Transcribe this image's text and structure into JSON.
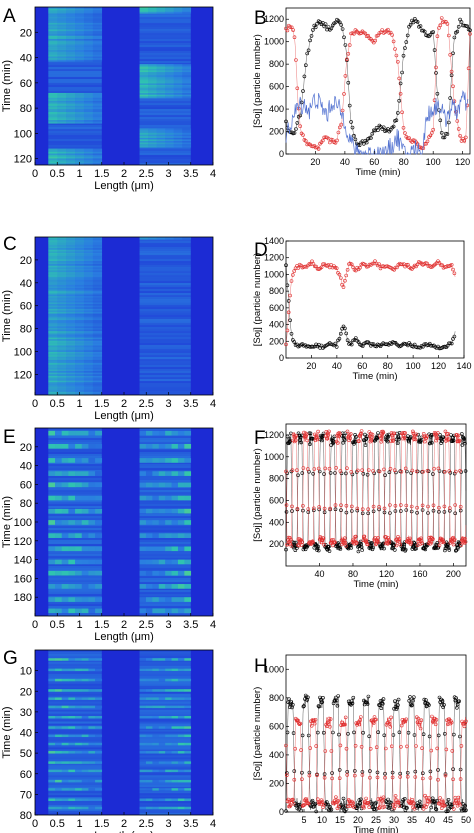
{
  "figure": {
    "panels": [
      "A",
      "B",
      "C",
      "D",
      "E",
      "F",
      "G",
      "H"
    ]
  },
  "chart_data": [
    {
      "id": "A",
      "type": "heatmap",
      "xlabel": "Length (μm)",
      "ylabel": "Time (min)",
      "xlim": [
        0,
        4
      ],
      "ylim": [
        0,
        125
      ],
      "xticks": [
        "0",
        "0.5",
        "1",
        "1.5",
        "2",
        "2.5",
        "3",
        "3.5",
        "4"
      ],
      "yticks": [
        "20",
        "40",
        "60",
        "80",
        "100",
        "120"
      ],
      "colormap": [
        "#1c2bd4",
        "#2a7fe0",
        "#2fc4b0",
        "#8fe05a"
      ],
      "regions": [
        {
          "x": [
            0.3,
            1.5
          ]
        },
        {
          "x": [
            2.35,
            3.5
          ]
        }
      ],
      "bands": [
        {
          "region": 0,
          "t": [
            0,
            43
          ],
          "level": 0.6
        },
        {
          "region": 0,
          "t": [
            68,
            92
          ],
          "level": 0.65
        },
        {
          "region": 0,
          "t": [
            112,
            125
          ],
          "level": 0.7
        },
        {
          "region": 1,
          "t": [
            0,
            5
          ],
          "level": 0.7
        },
        {
          "region": 1,
          "t": [
            45,
            72
          ],
          "level": 0.7
        },
        {
          "region": 1,
          "t": [
            96,
            111
          ],
          "level": 0.6
        }
      ]
    },
    {
      "id": "B",
      "type": "line",
      "xlabel": "Time (min)",
      "ylabel": "[Soj] (particle number)",
      "xlim": [
        0,
        125
      ],
      "ylim": [
        0,
        1300
      ],
      "xticks": [
        20,
        40,
        60,
        80,
        100,
        120
      ],
      "yticks": [
        0,
        200,
        400,
        600,
        800,
        1000,
        1200
      ],
      "series": [
        {
          "color": "#000000",
          "x": [
            0,
            3,
            6,
            10,
            14,
            18,
            22,
            26,
            30,
            34,
            38,
            41,
            44,
            48,
            52,
            56,
            60,
            64,
            68,
            72,
            76,
            80,
            84,
            88,
            92,
            96,
            100,
            103,
            106,
            110,
            114,
            118,
            122,
            125
          ],
          "values": [
            280,
            180,
            200,
            380,
            850,
            1100,
            1180,
            1150,
            1100,
            1180,
            1150,
            900,
            300,
            80,
            100,
            130,
            200,
            250,
            200,
            230,
            350,
            900,
            1150,
            1200,
            1120,
            1050,
            1100,
            500,
            150,
            170,
            1000,
            1180,
            1150,
            1100
          ]
        },
        {
          "color": "#e03030",
          "x": [
            0,
            3,
            6,
            8,
            10,
            14,
            18,
            22,
            26,
            30,
            34,
            38,
            41,
            44,
            48,
            52,
            56,
            60,
            64,
            68,
            72,
            76,
            80,
            84,
            88,
            92,
            96,
            100,
            103,
            106,
            110,
            114,
            118,
            122,
            125
          ],
          "values": [
            1100,
            1150,
            1050,
            500,
            200,
            100,
            80,
            50,
            150,
            120,
            100,
            300,
            800,
            1050,
            1100,
            1080,
            1050,
            1000,
            1080,
            1100,
            1060,
            800,
            200,
            120,
            100,
            50,
            120,
            200,
            1100,
            1200,
            1150,
            500,
            150,
            100,
            1050
          ]
        },
        {
          "color": "#5070d0",
          "x": [
            0,
            4,
            8,
            12,
            16,
            20,
            24,
            28,
            32,
            36,
            40,
            43,
            48,
            52,
            56,
            60,
            64,
            68,
            72,
            76,
            80,
            84,
            88,
            92,
            96,
            100,
            104,
            108,
            112,
            116,
            120,
            124
          ],
          "values": [
            150,
            300,
            420,
            450,
            380,
            500,
            420,
            350,
            480,
            400,
            300,
            150,
            0,
            0,
            0,
            0,
            0,
            0,
            80,
            150,
            0,
            0,
            50,
            0,
            350,
            400,
            450,
            300,
            420,
            380,
            500,
            400
          ]
        }
      ]
    },
    {
      "id": "C",
      "type": "heatmap",
      "xlabel": "Length (μm)",
      "ylabel": "Time (min)",
      "xlim": [
        0,
        4
      ],
      "ylim": [
        0,
        138
      ],
      "xticks": [
        "0",
        "0.5",
        "1",
        "1.5",
        "2",
        "2.5",
        "3",
        "3.5",
        "4"
      ],
      "yticks": [
        "20",
        "40",
        "60",
        "80",
        "100",
        "120"
      ],
      "colormap": [
        "#1c2bd4",
        "#2a7fe0",
        "#2fc4b0",
        "#8fe05a"
      ],
      "regions": [
        {
          "x": [
            0.3,
            1.5
          ]
        },
        {
          "x": [
            2.35,
            3.5
          ]
        }
      ],
      "bands": [
        {
          "region": 0,
          "t": [
            0,
            138
          ],
          "level": 0.6
        },
        {
          "region": 1,
          "t": [
            0,
            2
          ],
          "level": 0.5
        }
      ]
    },
    {
      "id": "D",
      "type": "line",
      "xlabel": "Time (min)",
      "ylabel": "[Soj] (particle number)",
      "xlim": [
        0,
        140
      ],
      "ylim": [
        0,
        1400
      ],
      "xticks": [
        20,
        40,
        60,
        80,
        100,
        120,
        140
      ],
      "xtick_labels": [
        "20",
        "40",
        "60",
        "80",
        "100",
        "120",
        "140"
      ],
      "yticks": [
        0,
        200,
        400,
        600,
        800,
        1000,
        1200,
        1400
      ],
      "series": [
        {
          "color": "#000000",
          "x": [
            0,
            2,
            4,
            6,
            10,
            15,
            20,
            25,
            30,
            35,
            40,
            45,
            50,
            55,
            60,
            65,
            70,
            75,
            80,
            85,
            90,
            95,
            100,
            105,
            110,
            115,
            120,
            125,
            130,
            133
          ],
          "values": [
            1100,
            700,
            300,
            180,
            140,
            160,
            130,
            150,
            120,
            180,
            150,
            400,
            150,
            230,
            150,
            180,
            140,
            160,
            150,
            200,
            150,
            170,
            150,
            130,
            160,
            150,
            120,
            140,
            170,
            300
          ]
        },
        {
          "color": "#e03030",
          "x": [
            0,
            2,
            4,
            6,
            10,
            15,
            20,
            25,
            30,
            35,
            40,
            45,
            50,
            55,
            60,
            65,
            70,
            75,
            80,
            85,
            90,
            95,
            100,
            105,
            110,
            115,
            120,
            125,
            130,
            133
          ],
          "values": [
            150,
            500,
            900,
            1050,
            1100,
            1080,
            1150,
            1050,
            1120,
            1100,
            1080,
            850,
            1150,
            1050,
            1120,
            1100,
            1150,
            1080,
            1100,
            1050,
            1120,
            1100,
            1080,
            1150,
            1120,
            1100,
            1150,
            1080,
            1120,
            980
          ]
        }
      ]
    },
    {
      "id": "E",
      "type": "heatmap",
      "xlabel": "Length (μm)",
      "ylabel": "Time (min)",
      "xlim": [
        0,
        4
      ],
      "ylim": [
        0,
        200
      ],
      "xticks": [
        "0",
        "0.5",
        "1",
        "1.5",
        "2",
        "2.5",
        "3",
        "3.5",
        "4"
      ],
      "yticks": [
        "20",
        "40",
        "60",
        "80",
        "100",
        "120",
        "140",
        "160",
        "180"
      ],
      "colormap": [
        "#1c2bd4",
        "#2a7fe0",
        "#2fc4b0",
        "#8fe05a"
      ],
      "regions": [
        {
          "x": [
            0.3,
            1.5
          ]
        },
        {
          "x": [
            2.35,
            3.5
          ]
        }
      ],
      "stripes_t": [
        3,
        17,
        32,
        46,
        58,
        72,
        86,
        98,
        112,
        126,
        140,
        152,
        166,
        180,
        192
      ],
      "stripe_width": 5
    },
    {
      "id": "F",
      "type": "line",
      "xlabel": "Time (min)",
      "ylabel": "[Soj] (particle number)",
      "xlim": [
        0,
        215
      ],
      "ylim": [
        0,
        1300
      ],
      "xticks": [
        40,
        80,
        120,
        160,
        200
      ],
      "yticks": [
        200,
        400,
        600,
        800,
        1000,
        1200
      ],
      "series": [
        {
          "color": "#000000",
          "period": 13,
          "phase": 0,
          "high": 1200,
          "low": 150
        },
        {
          "color": "#e03030",
          "period": 13,
          "phase": 6.5,
          "high": 1220,
          "low": 200
        }
      ]
    },
    {
      "id": "G",
      "type": "heatmap",
      "xlabel": "Length (μm)",
      "ylabel": "Time (min)",
      "xlim": [
        0,
        4
      ],
      "ylim": [
        0,
        80
      ],
      "xticks": [
        "0",
        "0.5",
        "1",
        "1.5",
        "2",
        "2.5",
        "3",
        "3.5",
        "4"
      ],
      "yticks": [
        "10",
        "20",
        "30",
        "40",
        "50",
        "60",
        "70",
        "80"
      ],
      "colormap": [
        "#1c2bd4",
        "#2a7fe0",
        "#2fc4b0",
        "#8fe05a"
      ],
      "regions": [
        {
          "x": [
            0.3,
            1.5
          ]
        },
        {
          "x": [
            2.35,
            3.5
          ]
        }
      ],
      "stripes_t": [
        4,
        9,
        14,
        19,
        23,
        27,
        32,
        37,
        41,
        45,
        49,
        54,
        58,
        63,
        67,
        72,
        76
      ],
      "stripe_width": 1.2
    },
    {
      "id": "H",
      "type": "line",
      "xlabel": "Time (min)",
      "ylabel": "[Soj] (particle number)",
      "xlim": [
        0,
        50
      ],
      "ylim": [
        0,
        1100
      ],
      "xticks": [
        5,
        10,
        15,
        20,
        25,
        30,
        35,
        40,
        45,
        50
      ],
      "yticks": [
        0,
        200,
        400,
        600,
        800,
        1000
      ],
      "series": [
        {
          "color": "#000000",
          "period": 4.2,
          "phase": 0,
          "high": 800,
          "low": 20
        },
        {
          "color": "#e03030",
          "period": 4.2,
          "phase": 2.1,
          "high": 650,
          "low": 40
        }
      ]
    }
  ]
}
